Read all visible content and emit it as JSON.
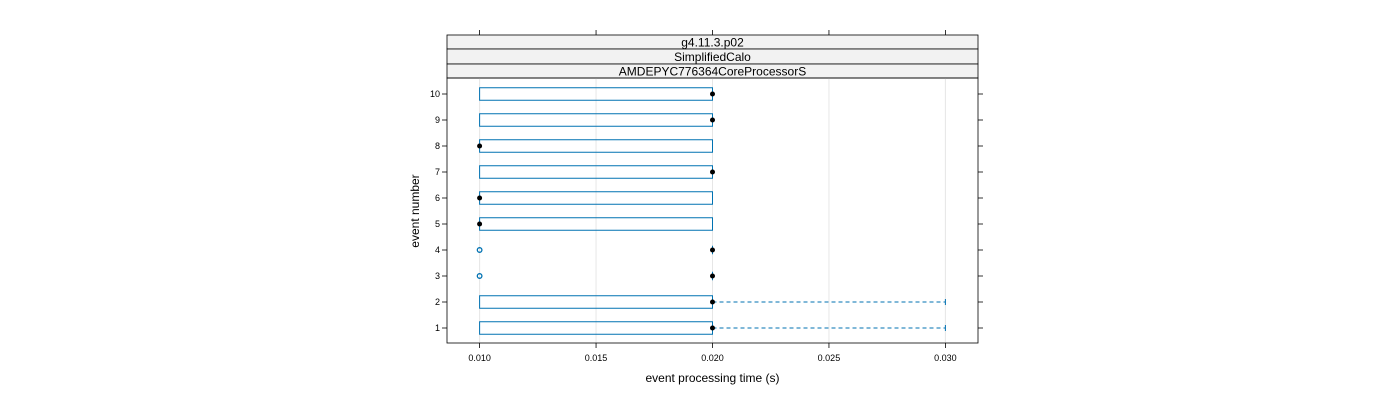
{
  "chart_data": {
    "type": "box",
    "strips": [
      "g4.11.3.p02",
      "SimplifiedCalo",
      "AMDEPYC776364CoreProcessorS"
    ],
    "xlabel": "event processing time (s)",
    "ylabel": "event number",
    "xlim": [
      0.0086,
      0.0314
    ],
    "xticks": [
      "0.010",
      "0.015",
      "0.020",
      "0.025",
      "0.030"
    ],
    "grid": true,
    "events": [
      {
        "event": "1",
        "q1": 0.01,
        "q3": 0.02,
        "median": 0.02,
        "whisker_high": 0.03,
        "outliers": []
      },
      {
        "event": "2",
        "q1": 0.01,
        "q3": 0.02,
        "median": 0.02,
        "whisker_high": 0.03,
        "outliers": []
      },
      {
        "event": "3",
        "q1": 0.02,
        "q3": 0.02,
        "median": 0.02,
        "whisker_high": 0.02,
        "outliers": [
          0.01
        ]
      },
      {
        "event": "4",
        "q1": 0.02,
        "q3": 0.02,
        "median": 0.02,
        "whisker_high": 0.02,
        "outliers": [
          0.01
        ]
      },
      {
        "event": "5",
        "q1": 0.01,
        "q3": 0.02,
        "median": 0.01,
        "whisker_high": 0.02,
        "outliers": []
      },
      {
        "event": "6",
        "q1": 0.01,
        "q3": 0.02,
        "median": 0.01,
        "whisker_high": 0.02,
        "outliers": []
      },
      {
        "event": "7",
        "q1": 0.01,
        "q3": 0.02,
        "median": 0.02,
        "whisker_high": 0.02,
        "outliers": []
      },
      {
        "event": "8",
        "q1": 0.01,
        "q3": 0.02,
        "median": 0.01,
        "whisker_high": 0.02,
        "outliers": []
      },
      {
        "event": "9",
        "q1": 0.01,
        "q3": 0.02,
        "median": 0.02,
        "whisker_high": 0.02,
        "outliers": []
      },
      {
        "event": "10",
        "q1": 0.01,
        "q3": 0.02,
        "median": 0.02,
        "whisker_high": 0.02,
        "outliers": []
      }
    ],
    "colors": {
      "box": "#0080ff",
      "box_stroke": "#0072b2",
      "median": "#000000",
      "grid": "#e6e6e6",
      "strip_bg": "#f2f2f2"
    }
  }
}
